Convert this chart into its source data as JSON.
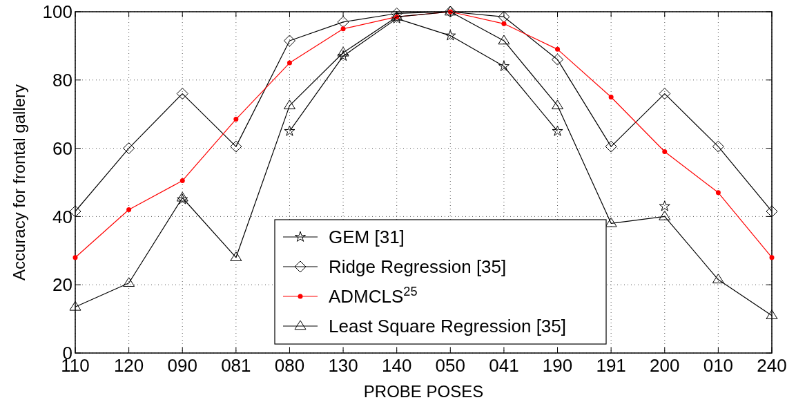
{
  "chart_data": {
    "type": "line",
    "xlabel": "PROBE POSES",
    "ylabel": "Accuracy for frontal gallery",
    "categories": [
      "110",
      "120",
      "090",
      "081",
      "080",
      "130",
      "140",
      "050",
      "041",
      "190",
      "191",
      "200",
      "010",
      "240"
    ],
    "ylim": [
      0,
      100
    ],
    "yticks": [
      0,
      20,
      40,
      60,
      80,
      100
    ],
    "grid": true,
    "legend": "bottom",
    "series": [
      {
        "name": "GEM [31]",
        "color": "#000000",
        "marker": "star",
        "values": [
          null,
          null,
          45,
          null,
          65,
          87,
          98,
          93,
          84,
          65,
          null,
          43,
          null,
          null
        ]
      },
      {
        "name": "Ridge Regression [35]",
        "color": "#000000",
        "marker": "diamond",
        "values": [
          41.5,
          60,
          76,
          60.5,
          91.5,
          97,
          99.5,
          100,
          98.5,
          86,
          60.5,
          76,
          60.5,
          41.5
        ]
      },
      {
        "name": "ADMCLS$^{25}$",
        "color": "#ff0000",
        "marker": "circle",
        "values": [
          28,
          42,
          50.5,
          68.5,
          85,
          95,
          98.5,
          100,
          96.5,
          89,
          75,
          59,
          47,
          28
        ]
      },
      {
        "name": "Least Square Regression [35]",
        "color": "#000000",
        "marker": "triangle",
        "values": [
          13.5,
          20.5,
          45.5,
          28,
          72.5,
          88,
          98.5,
          100,
          91.5,
          72.5,
          38,
          40,
          21.5,
          11
        ]
      }
    ]
  }
}
